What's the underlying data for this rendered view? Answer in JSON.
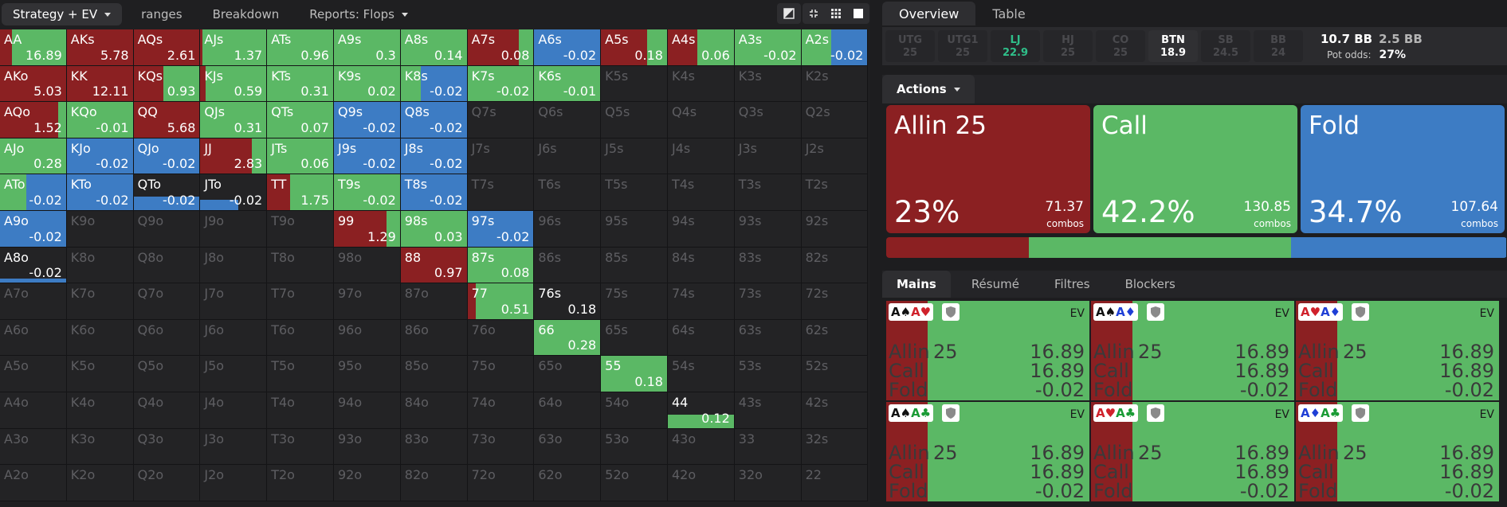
{
  "left_tabs": [
    {
      "label": "Strategy + EV",
      "active": true,
      "dropdown": true
    },
    {
      "label": "ranges"
    },
    {
      "label": "Breakdown"
    },
    {
      "label": "Reports: Flops",
      "dropdown": true
    }
  ],
  "colors": {
    "allin": "#8b2022",
    "call": "#5bb865",
    "fold": "#3d7cc4",
    "empty": "#232325",
    "lj": "#2fbf8a"
  },
  "grid": [
    [
      {
        "h": "AA",
        "ev": "16.89",
        "a": 0.18,
        "c": 0.82,
        "f": 0
      },
      {
        "h": "AKs",
        "ev": "5.78",
        "a": 1,
        "c": 0,
        "f": 0
      },
      {
        "h": "AQs",
        "ev": "2.61",
        "a": 1,
        "c": 0,
        "f": 0
      },
      {
        "h": "AJs",
        "ev": "1.37",
        "a": 0.03,
        "c": 0.97,
        "f": 0
      },
      {
        "h": "ATs",
        "ev": "0.96",
        "a": 0,
        "c": 1,
        "f": 0
      },
      {
        "h": "A9s",
        "ev": "0.3",
        "a": 0,
        "c": 1,
        "f": 0
      },
      {
        "h": "A8s",
        "ev": "0.14",
        "a": 0,
        "c": 1,
        "f": 0
      },
      {
        "h": "A7s",
        "ev": "0.08",
        "a": 0.78,
        "c": 0.22,
        "f": 0
      },
      {
        "h": "A6s",
        "ev": "-0.02",
        "a": 0,
        "c": 0,
        "f": 1
      },
      {
        "h": "A5s",
        "ev": "0.18",
        "a": 0.7,
        "c": 0.3,
        "f": 0
      },
      {
        "h": "A4s",
        "ev": "0.06",
        "a": 0.45,
        "c": 0.55,
        "f": 0
      },
      {
        "h": "A3s",
        "ev": "-0.02",
        "a": 0,
        "c": 1,
        "f": 0
      },
      {
        "h": "A2s",
        "ev": "-0.02",
        "a": 0,
        "c": 0.45,
        "f": 0.55
      }
    ],
    [
      {
        "h": "AKo",
        "ev": "5.03",
        "a": 1,
        "c": 0,
        "f": 0
      },
      {
        "h": "KK",
        "ev": "12.11",
        "a": 1,
        "c": 0,
        "f": 0
      },
      {
        "h": "KQs",
        "ev": "0.93",
        "a": 0.45,
        "c": 0.55,
        "f": 0
      },
      {
        "h": "KJs",
        "ev": "0.59",
        "a": 0.08,
        "c": 0.92,
        "f": 0
      },
      {
        "h": "KTs",
        "ev": "0.31",
        "a": 0,
        "c": 1,
        "f": 0
      },
      {
        "h": "K9s",
        "ev": "0.02",
        "a": 0,
        "c": 1,
        "f": 0
      },
      {
        "h": "K8s",
        "ev": "-0.02",
        "a": 0,
        "c": 0.3,
        "f": 0.7
      },
      {
        "h": "K7s",
        "ev": "-0.02",
        "a": 0,
        "c": 1,
        "f": 0
      },
      {
        "h": "K6s",
        "ev": "-0.01",
        "a": 0,
        "c": 1,
        "f": 0
      },
      {
        "h": "K5s"
      },
      {
        "h": "K4s"
      },
      {
        "h": "K3s"
      },
      {
        "h": "K2s"
      }
    ],
    [
      {
        "h": "AQo",
        "ev": "1.52",
        "a": 0.88,
        "c": 0.12,
        "f": 0
      },
      {
        "h": "KQo",
        "ev": "-0.01",
        "a": 0,
        "c": 1,
        "f": 0
      },
      {
        "h": "QQ",
        "ev": "5.68",
        "a": 1,
        "c": 0,
        "f": 0
      },
      {
        "h": "QJs",
        "ev": "0.31",
        "a": 0,
        "c": 1,
        "f": 0
      },
      {
        "h": "QTs",
        "ev": "0.07",
        "a": 0,
        "c": 1,
        "f": 0
      },
      {
        "h": "Q9s",
        "ev": "-0.02",
        "a": 0,
        "c": 0,
        "f": 1
      },
      {
        "h": "Q8s",
        "ev": "-0.02",
        "a": 0,
        "c": 0,
        "f": 1
      },
      {
        "h": "Q7s"
      },
      {
        "h": "Q6s"
      },
      {
        "h": "Q5s"
      },
      {
        "h": "Q4s"
      },
      {
        "h": "Q3s"
      },
      {
        "h": "Q2s"
      }
    ],
    [
      {
        "h": "AJo",
        "ev": "0.28",
        "a": 0,
        "c": 1,
        "f": 0
      },
      {
        "h": "KJo",
        "ev": "-0.02",
        "a": 0,
        "c": 0,
        "f": 1
      },
      {
        "h": "QJo",
        "ev": "-0.02",
        "a": 0,
        "c": 0,
        "f": 1
      },
      {
        "h": "JJ",
        "ev": "2.83",
        "a": 0.78,
        "c": 0.22,
        "f": 0
      },
      {
        "h": "JTs",
        "ev": "0.06",
        "a": 0,
        "c": 1,
        "f": 0
      },
      {
        "h": "J9s",
        "ev": "-0.02",
        "a": 0,
        "c": 0,
        "f": 1
      },
      {
        "h": "J8s",
        "ev": "-0.02",
        "a": 0,
        "c": 0,
        "f": 1
      },
      {
        "h": "J7s"
      },
      {
        "h": "J6s"
      },
      {
        "h": "J5s"
      },
      {
        "h": "J4s"
      },
      {
        "h": "J3s"
      },
      {
        "h": "J2s"
      }
    ],
    [
      {
        "h": "ATo",
        "ev": "-0.02",
        "a": 0,
        "c": 0.4,
        "f": 0.6
      },
      {
        "h": "KTo",
        "ev": "-0.02",
        "a": 0,
        "c": 0,
        "f": 1
      },
      {
        "h": "QTo",
        "ev": "-0.02",
        "a": 0,
        "c": 0,
        "f": 1,
        "fh": 0.38
      },
      {
        "h": "JTo",
        "ev": "-0.02",
        "a": 0,
        "c": 0,
        "f": 1,
        "fh": 0.3,
        "fx": 0.58
      },
      {
        "h": "TT",
        "ev": "1.75",
        "a": 0.35,
        "c": 0.65,
        "f": 0
      },
      {
        "h": "T9s",
        "ev": "-0.02",
        "a": 0,
        "c": 1,
        "f": 0
      },
      {
        "h": "T8s",
        "ev": "-0.02",
        "a": 0,
        "c": 0,
        "f": 1
      },
      {
        "h": "T7s"
      },
      {
        "h": "T6s"
      },
      {
        "h": "T5s"
      },
      {
        "h": "T4s"
      },
      {
        "h": "T3s"
      },
      {
        "h": "T2s"
      }
    ],
    [
      {
        "h": "A9o",
        "ev": "-0.02",
        "a": 0,
        "c": 0,
        "f": 1
      },
      {
        "h": "K9o"
      },
      {
        "h": "Q9o"
      },
      {
        "h": "J9o"
      },
      {
        "h": "T9o"
      },
      {
        "h": "99",
        "ev": "1.29",
        "a": 0.8,
        "c": 0.2,
        "f": 0
      },
      {
        "h": "98s",
        "ev": "0.03",
        "a": 0,
        "c": 1,
        "f": 0
      },
      {
        "h": "97s",
        "ev": "-0.02",
        "a": 0,
        "c": 0,
        "f": 1
      },
      {
        "h": "96s"
      },
      {
        "h": "95s"
      },
      {
        "h": "94s"
      },
      {
        "h": "93s"
      },
      {
        "h": "92s"
      }
    ],
    [
      {
        "h": "A8o",
        "ev": "-0.02",
        "a": 0,
        "c": 0,
        "f": 1,
        "fh": 0.12
      },
      {
        "h": "K8o"
      },
      {
        "h": "Q8o"
      },
      {
        "h": "J8o"
      },
      {
        "h": "T8o"
      },
      {
        "h": "98o"
      },
      {
        "h": "88",
        "ev": "0.97",
        "a": 1,
        "c": 0,
        "f": 0
      },
      {
        "h": "87s",
        "ev": "0.08",
        "a": 0,
        "c": 1,
        "f": 0
      },
      {
        "h": "86s"
      },
      {
        "h": "85s"
      },
      {
        "h": "84s"
      },
      {
        "h": "83s"
      },
      {
        "h": "82s"
      }
    ],
    [
      {
        "h": "A7o"
      },
      {
        "h": "K7o"
      },
      {
        "h": "Q7o"
      },
      {
        "h": "J7o"
      },
      {
        "h": "T7o"
      },
      {
        "h": "97o"
      },
      {
        "h": "87o"
      },
      {
        "h": "77",
        "ev": "0.51",
        "a": 0.12,
        "c": 0.88,
        "f": 0
      },
      {
        "h": "76s",
        "ev": "0.18",
        "a": 0,
        "c": 0,
        "f": 0,
        "dark": true
      },
      {
        "h": "75s"
      },
      {
        "h": "74s"
      },
      {
        "h": "73s"
      },
      {
        "h": "72s"
      }
    ],
    [
      {
        "h": "A6o"
      },
      {
        "h": "K6o"
      },
      {
        "h": "Q6o"
      },
      {
        "h": "J6o"
      },
      {
        "h": "T6o"
      },
      {
        "h": "96o"
      },
      {
        "h": "86o"
      },
      {
        "h": "76o"
      },
      {
        "h": "66",
        "ev": "0.28",
        "a": 0,
        "c": 1,
        "f": 0
      },
      {
        "h": "65s"
      },
      {
        "h": "64s"
      },
      {
        "h": "63s"
      },
      {
        "h": "62s"
      }
    ],
    [
      {
        "h": "A5o"
      },
      {
        "h": "K5o"
      },
      {
        "h": "Q5o"
      },
      {
        "h": "J5o"
      },
      {
        "h": "T5o"
      },
      {
        "h": "95o"
      },
      {
        "h": "85o"
      },
      {
        "h": "75o"
      },
      {
        "h": "65o"
      },
      {
        "h": "55",
        "ev": "0.18",
        "a": 0,
        "c": 1,
        "f": 0
      },
      {
        "h": "54s"
      },
      {
        "h": "53s"
      },
      {
        "h": "52s"
      }
    ],
    [
      {
        "h": "A4o"
      },
      {
        "h": "K4o"
      },
      {
        "h": "Q4o"
      },
      {
        "h": "J4o"
      },
      {
        "h": "T4o"
      },
      {
        "h": "94o"
      },
      {
        "h": "84o"
      },
      {
        "h": "74o"
      },
      {
        "h": "64o"
      },
      {
        "h": "54o"
      },
      {
        "h": "44",
        "ev": "0.12",
        "a": 0,
        "c": 1,
        "f": 0,
        "ch": 0.38
      },
      {
        "h": "43s"
      },
      {
        "h": "42s"
      }
    ],
    [
      {
        "h": "A3o"
      },
      {
        "h": "K3o"
      },
      {
        "h": "Q3o"
      },
      {
        "h": "J3o"
      },
      {
        "h": "T3o"
      },
      {
        "h": "93o"
      },
      {
        "h": "83o"
      },
      {
        "h": "73o"
      },
      {
        "h": "63o"
      },
      {
        "h": "53o"
      },
      {
        "h": "43o"
      },
      {
        "h": "33"
      },
      {
        "h": "32s"
      }
    ],
    [
      {
        "h": "A2o"
      },
      {
        "h": "K2o"
      },
      {
        "h": "Q2o"
      },
      {
        "h": "J2o"
      },
      {
        "h": "T2o"
      },
      {
        "h": "92o"
      },
      {
        "h": "82o"
      },
      {
        "h": "72o"
      },
      {
        "h": "62o"
      },
      {
        "h": "52o"
      },
      {
        "h": "42o"
      },
      {
        "h": "32o"
      },
      {
        "h": "22"
      }
    ]
  ],
  "right_tabs": [
    {
      "label": "Overview",
      "active": true
    },
    {
      "label": "Table"
    }
  ],
  "positions": [
    {
      "name": "UTG",
      "stack": "25"
    },
    {
      "name": "UTG1",
      "stack": "25"
    },
    {
      "name": "LJ",
      "stack": "22.9",
      "state": "lj"
    },
    {
      "name": "HJ",
      "stack": "25"
    },
    {
      "name": "CO",
      "stack": "25"
    },
    {
      "name": "BTN",
      "stack": "18.9",
      "state": "btn"
    },
    {
      "name": "SB",
      "stack": "24.5"
    },
    {
      "name": "BB",
      "stack": "24"
    }
  ],
  "stacks": {
    "main": "10.7 BB",
    "secondary": "2.5 BB",
    "pot_odds_label": "Pot odds:",
    "pot_odds": "27%"
  },
  "actions_header": "Actions",
  "actions": [
    {
      "name": "Allin 25",
      "pct": "23%",
      "combos": "71.37",
      "combos_label": "combos",
      "color": "#8b2022",
      "freq": 0.23
    },
    {
      "name": "Call",
      "pct": "42.2%",
      "combos": "130.85",
      "combos_label": "combos",
      "color": "#5bb865",
      "freq": 0.422
    },
    {
      "name": "Fold",
      "pct": "34.7%",
      "combos": "107.64",
      "combos_label": "combos",
      "color": "#3d7cc4",
      "freq": 0.347
    }
  ],
  "mains_tabs": [
    {
      "label": "Mains",
      "active": true
    },
    {
      "label": "Résumé"
    },
    {
      "label": "Filtres"
    },
    {
      "label": "Blockers"
    }
  ],
  "combos": [
    {
      "cards": [
        {
          "r": "A",
          "s": "♠",
          "c": "blk"
        },
        {
          "r": "A",
          "s": "♥",
          "c": "red"
        }
      ],
      "ev_label": "EV",
      "rows": [
        {
          "n": "Allin",
          "s": "25",
          "v": "16.89"
        },
        {
          "n": "Call",
          "s": "",
          "v": "16.89"
        },
        {
          "n": "Fold",
          "s": "",
          "v": "-0.02"
        }
      ]
    },
    {
      "cards": [
        {
          "r": "A",
          "s": "♠",
          "c": "blk"
        },
        {
          "r": "A",
          "s": "♦",
          "c": "blu"
        }
      ],
      "ev_label": "EV",
      "rows": [
        {
          "n": "Allin",
          "s": "25",
          "v": "16.89"
        },
        {
          "n": "Call",
          "s": "",
          "v": "16.89"
        },
        {
          "n": "Fold",
          "s": "",
          "v": "-0.02"
        }
      ]
    },
    {
      "cards": [
        {
          "r": "A",
          "s": "♥",
          "c": "red"
        },
        {
          "r": "A",
          "s": "♦",
          "c": "blu"
        }
      ],
      "ev_label": "EV",
      "rows": [
        {
          "n": "Allin",
          "s": "25",
          "v": "16.89"
        },
        {
          "n": "Call",
          "s": "",
          "v": "16.89"
        },
        {
          "n": "Fold",
          "s": "",
          "v": "-0.02"
        }
      ]
    },
    {
      "cards": [
        {
          "r": "A",
          "s": "♠",
          "c": "blk"
        },
        {
          "r": "A",
          "s": "♣",
          "c": "grn"
        }
      ],
      "ev_label": "EV",
      "rows": [
        {
          "n": "Allin",
          "s": "25",
          "v": "16.89"
        },
        {
          "n": "Call",
          "s": "",
          "v": "16.89"
        },
        {
          "n": "Fold",
          "s": "",
          "v": "-0.02"
        }
      ]
    },
    {
      "cards": [
        {
          "r": "A",
          "s": "♥",
          "c": "red"
        },
        {
          "r": "A",
          "s": "♣",
          "c": "grn"
        }
      ],
      "ev_label": "EV",
      "rows": [
        {
          "n": "Allin",
          "s": "25",
          "v": "16.89"
        },
        {
          "n": "Call",
          "s": "",
          "v": "16.89"
        },
        {
          "n": "Fold",
          "s": "",
          "v": "-0.02"
        }
      ]
    },
    {
      "cards": [
        {
          "r": "A",
          "s": "♦",
          "c": "blu"
        },
        {
          "r": "A",
          "s": "♣",
          "c": "grn"
        }
      ],
      "ev_label": "EV",
      "rows": [
        {
          "n": "Allin",
          "s": "25",
          "v": "16.89"
        },
        {
          "n": "Call",
          "s": "",
          "v": "16.89"
        },
        {
          "n": "Fold",
          "s": "",
          "v": "-0.02"
        }
      ]
    }
  ]
}
